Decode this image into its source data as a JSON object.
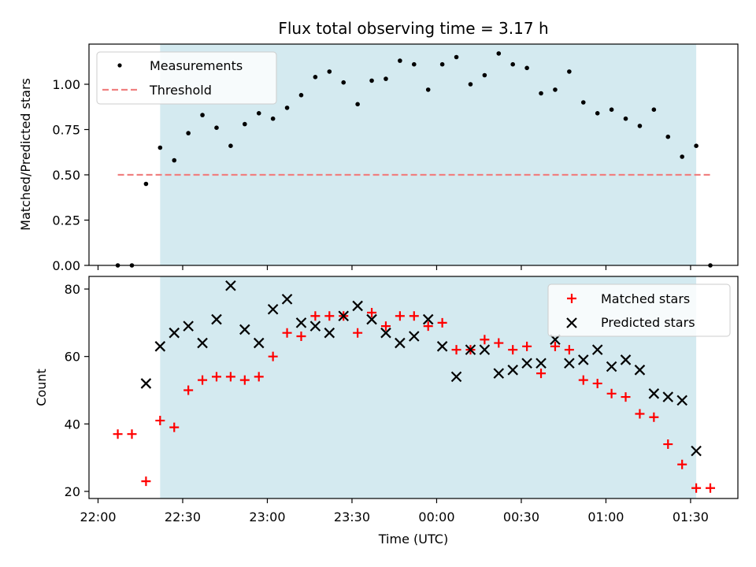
{
  "chart_data": [
    {
      "type": "scatter",
      "title": "Flux total observing time = 3.17 h",
      "xlabel": "",
      "ylabel": "Matched/Predicted stars",
      "ylim": [
        0,
        1.2
      ],
      "yticks": [
        "0.00",
        "0.25",
        "0.50",
        "0.75",
        "1.00"
      ],
      "legend_position": "top-left",
      "shaded_interval": [
        "22:22",
        "01:32"
      ],
      "colors": {
        "shade": "#d4eaf0",
        "measurements": "#000000",
        "threshold": "#f08080"
      },
      "threshold": {
        "name": "Threshold",
        "value": 0.5,
        "x_start": "22:07",
        "x_end": "01:37"
      },
      "series": [
        {
          "name": "Measurements",
          "marker": "dot",
          "x": [
            "22:07",
            "22:12",
            "22:17",
            "22:22",
            "22:27",
            "22:32",
            "22:37",
            "22:42",
            "22:47",
            "22:52",
            "22:57",
            "23:02",
            "23:07",
            "23:12",
            "23:17",
            "23:22",
            "23:27",
            "23:32",
            "23:37",
            "23:42",
            "23:47",
            "23:52",
            "23:57",
            "00:02",
            "00:07",
            "00:12",
            "00:17",
            "00:22",
            "00:27",
            "00:32",
            "00:37",
            "00:42",
            "00:47",
            "00:52",
            "00:57",
            "01:02",
            "01:07",
            "01:12",
            "01:17",
            "01:22",
            "01:27",
            "01:32",
            "01:37"
          ],
          "y": [
            0.0,
            0.0,
            0.45,
            0.65,
            0.58,
            0.73,
            0.83,
            0.76,
            0.66,
            0.78,
            0.84,
            0.81,
            0.87,
            0.94,
            1.04,
            1.07,
            1.01,
            0.89,
            1.02,
            1.03,
            1.13,
            1.11,
            0.97,
            1.11,
            1.15,
            1.0,
            1.05,
            1.17,
            1.11,
            1.09,
            0.95,
            0.97,
            1.07,
            0.9,
            0.84,
            0.86,
            0.81,
            0.77,
            0.86,
            0.71,
            0.6,
            0.66,
            0.0
          ]
        }
      ]
    },
    {
      "type": "scatter",
      "title": "",
      "xlabel": "Time (UTC)",
      "ylabel": "Count",
      "ylim": [
        18,
        84
      ],
      "yticks": [
        "20",
        "40",
        "60",
        "80"
      ],
      "xticks": [
        "22:00",
        "22:30",
        "23:00",
        "23:30",
        "00:00",
        "00:30",
        "01:00",
        "01:30"
      ],
      "legend_position": "top-right",
      "shaded_interval": [
        "22:22",
        "01:32"
      ],
      "colors": {
        "shade": "#d4eaf0",
        "matched": "#ff0000",
        "predicted": "#000000"
      },
      "series": [
        {
          "name": "Matched stars",
          "marker": "plus",
          "x": [
            "22:07",
            "22:12",
            "22:17",
            "22:22",
            "22:27",
            "22:32",
            "22:37",
            "22:42",
            "22:47",
            "22:52",
            "22:57",
            "23:02",
            "23:07",
            "23:12",
            "23:17",
            "23:22",
            "23:27",
            "23:32",
            "23:37",
            "23:42",
            "23:47",
            "23:52",
            "23:57",
            "00:02",
            "00:07",
            "00:12",
            "00:17",
            "00:22",
            "00:27",
            "00:32",
            "00:37",
            "00:42",
            "00:47",
            "00:52",
            "00:57",
            "01:02",
            "01:07",
            "01:12",
            "01:17",
            "01:22",
            "01:27",
            "01:32",
            "01:37"
          ],
          "y": [
            37,
            37,
            23,
            41,
            39,
            50,
            53,
            54,
            54,
            53,
            54,
            60,
            67,
            66,
            72,
            72,
            72,
            67,
            73,
            69,
            72,
            72,
            69,
            70,
            62,
            62,
            65,
            64,
            62,
            63,
            55,
            63,
            62,
            53,
            52,
            49,
            48,
            43,
            42,
            34,
            28,
            21,
            21
          ]
        },
        {
          "name": "Predicted stars",
          "marker": "x",
          "x": [
            "22:17",
            "22:22",
            "22:27",
            "22:32",
            "22:37",
            "22:42",
            "22:47",
            "22:52",
            "22:57",
            "23:02",
            "23:07",
            "23:12",
            "23:17",
            "23:22",
            "23:27",
            "23:32",
            "23:37",
            "23:42",
            "23:47",
            "23:52",
            "23:57",
            "00:02",
            "00:07",
            "00:12",
            "00:17",
            "00:22",
            "00:27",
            "00:32",
            "00:37",
            "00:42",
            "00:47",
            "00:52",
            "00:57",
            "01:02",
            "01:07",
            "01:12",
            "01:17",
            "01:22",
            "01:27",
            "01:32"
          ],
          "y": [
            52,
            63,
            67,
            69,
            64,
            71,
            81,
            68,
            64,
            74,
            77,
            70,
            69,
            67,
            72,
            75,
            71,
            67,
            64,
            66,
            71,
            63,
            54,
            62,
            62,
            55,
            56,
            58,
            58,
            65,
            58,
            59,
            62,
            57,
            59,
            56,
            49,
            48,
            47,
            32
          ]
        }
      ]
    }
  ]
}
